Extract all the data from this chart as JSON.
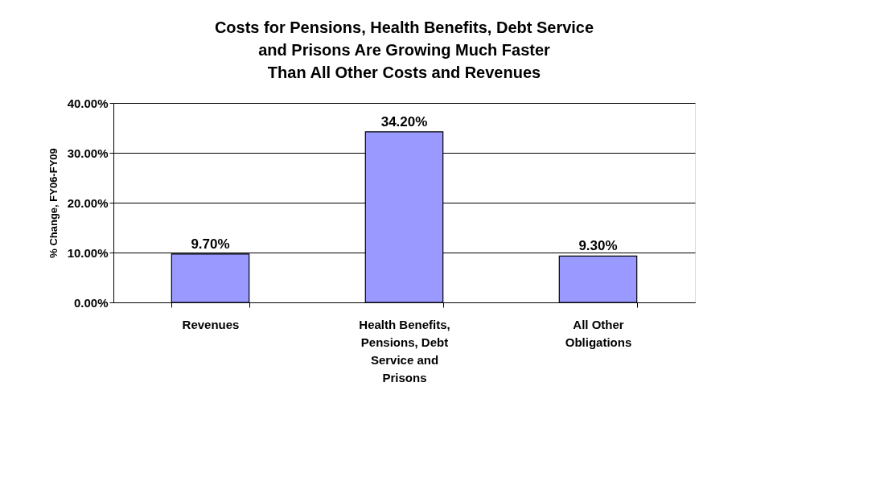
{
  "chart_data": {
    "type": "bar",
    "title": "Costs for Pensions, Health Benefits, Debt Service\nand Prisons Are Growing Much Faster\nThan All Other Costs and Revenues",
    "ylabel": "% Change, FY06-FY09",
    "categories": [
      "Revenues",
      "Health Benefits, Pensions, Debt Service and Prisons",
      "All Other Obligations"
    ],
    "values": [
      9.7,
      34.2,
      9.3
    ],
    "value_labels": [
      "9.70%",
      "34.20%",
      "9.30%"
    ],
    "color": "#9999ff",
    "ylim": [
      0,
      40
    ],
    "yticks": [
      {
        "value": 0,
        "label": "0.00%"
      },
      {
        "value": 10,
        "label": "10.00%"
      },
      {
        "value": 20,
        "label": "20.00%"
      },
      {
        "value": 30,
        "label": "30.00%"
      },
      {
        "value": 40,
        "label": "40.00%"
      }
    ],
    "grid": "y"
  }
}
